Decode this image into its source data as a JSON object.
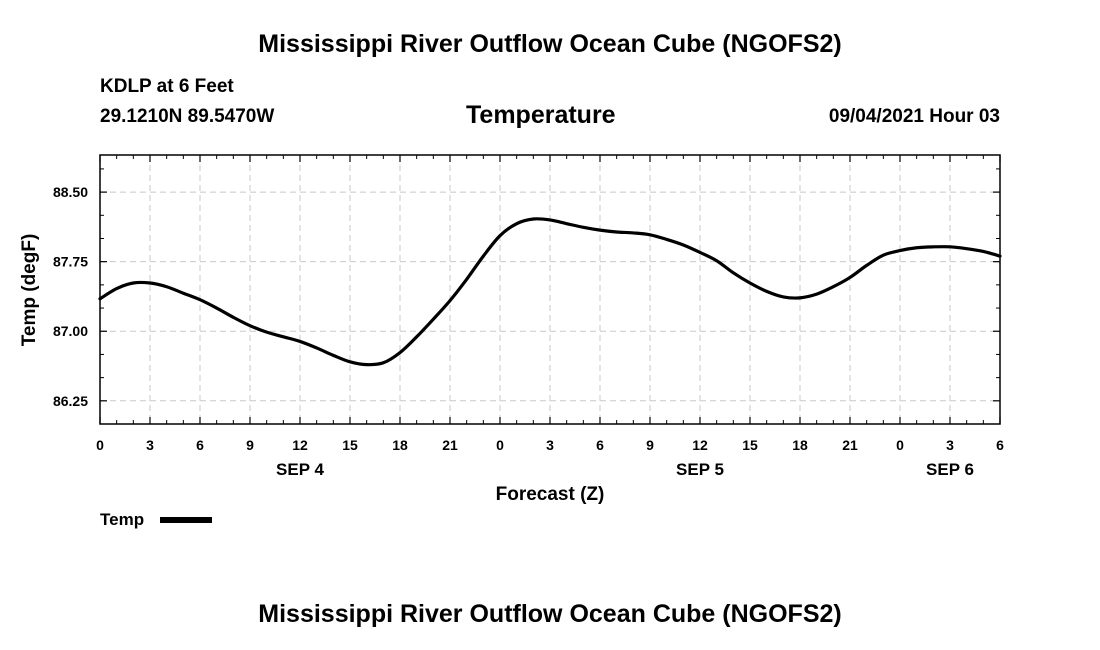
{
  "page": {
    "title_top": "Mississippi River Outflow Ocean Cube (NGOFS2)",
    "title_bottom": "Mississippi River Outflow Ocean Cube (NGOFS2)",
    "station": "KDLP at 6 Feet",
    "coords": "29.1210N  89.5470W",
    "datetime": "09/04/2021 Hour 03"
  },
  "chart_data": {
    "type": "line",
    "title": "Temperature",
    "xlabel": "Forecast (Z)",
    "ylabel": "Temp (degF)",
    "xlim": [
      0,
      54
    ],
    "ylim": [
      86.0,
      88.9
    ],
    "yticks": [
      86.25,
      87.0,
      87.75,
      88.5
    ],
    "ytick_labels": [
      "86.25",
      "87.00",
      "87.75",
      "88.50"
    ],
    "xticks": [
      0,
      3,
      6,
      9,
      12,
      15,
      18,
      21,
      24,
      27,
      30,
      33,
      36,
      39,
      42,
      45,
      48,
      51,
      54
    ],
    "xtick_labels": [
      "0",
      "3",
      "6",
      "9",
      "12",
      "15",
      "18",
      "21",
      "0",
      "3",
      "6",
      "9",
      "12",
      "15",
      "18",
      "21",
      "0",
      "3",
      "6"
    ],
    "date_labels": [
      {
        "x": 12,
        "label": "SEP 4"
      },
      {
        "x": 36,
        "label": "SEP 5"
      },
      {
        "x": 51,
        "label": "SEP 6"
      }
    ],
    "grid": true,
    "legend": {
      "label": "Temp",
      "color": "#000000"
    },
    "series": [
      {
        "name": "Temp",
        "color": "#000000",
        "x": [
          0,
          1,
          2,
          3,
          4,
          5,
          6,
          7,
          8,
          9,
          10,
          11,
          12,
          13,
          14,
          15,
          16,
          17,
          18,
          19,
          20,
          21,
          22,
          23,
          24,
          25,
          26,
          27,
          28,
          29,
          30,
          31,
          32,
          33,
          34,
          35,
          36,
          37,
          38,
          39,
          40,
          41,
          42,
          43,
          44,
          45,
          46,
          47,
          48,
          49,
          50,
          51,
          52,
          53,
          54
        ],
        "values": [
          87.35,
          87.46,
          87.52,
          87.52,
          87.48,
          87.41,
          87.34,
          87.25,
          87.15,
          87.06,
          86.99,
          86.94,
          86.89,
          86.82,
          86.74,
          86.67,
          86.64,
          86.66,
          86.77,
          86.94,
          87.13,
          87.33,
          87.56,
          87.81,
          88.03,
          88.16,
          88.21,
          88.2,
          88.16,
          88.12,
          88.09,
          88.07,
          88.06,
          88.04,
          87.99,
          87.93,
          87.85,
          87.76,
          87.63,
          87.52,
          87.43,
          87.37,
          87.36,
          87.4,
          87.48,
          87.58,
          87.71,
          87.82,
          87.87,
          87.9,
          87.91,
          87.91,
          87.89,
          87.86,
          87.81
        ]
      }
    ]
  }
}
